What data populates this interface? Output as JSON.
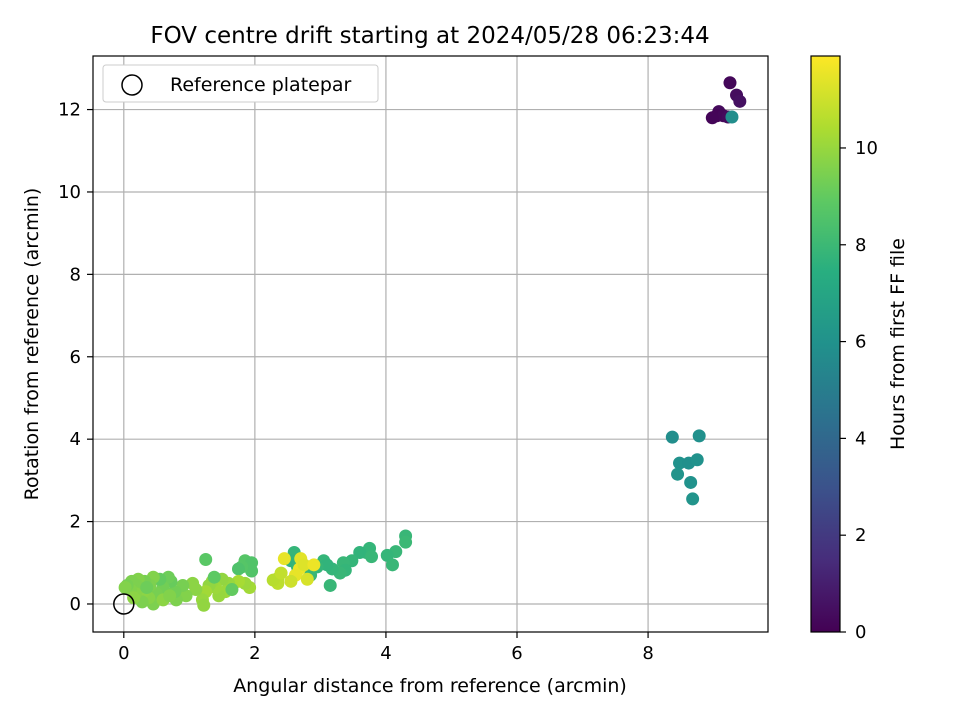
{
  "chart_data": {
    "type": "scatter",
    "title": "FOV centre drift starting at 2024/05/28 06:23:44",
    "xlabel": "Angular distance from reference (arcmin)",
    "ylabel": "Rotation from reference (arcmin)",
    "xlim": [
      -0.47,
      9.83
    ],
    "ylim": [
      -0.68,
      13.3
    ],
    "xticks": [
      0,
      2,
      4,
      6,
      8
    ],
    "yticks": [
      0,
      2,
      4,
      6,
      8,
      10,
      12
    ],
    "grid": true,
    "colormap": "viridis",
    "colorbar": {
      "label": "Hours from first FF file",
      "range": [
        0,
        11.9
      ],
      "ticks": [
        0,
        2,
        4,
        6,
        8,
        10
      ]
    },
    "legend": {
      "position": "upper-left",
      "entries": [
        "Reference platepar"
      ]
    },
    "reference_point": {
      "x": 0,
      "y": 0
    },
    "series": [
      {
        "fields": [
          "x",
          "y",
          "hours"
        ],
        "points": [
          [
            9.25,
            12.65,
            0.2
          ],
          [
            9.35,
            12.35,
            0.4
          ],
          [
            9.4,
            12.2,
            0.5
          ],
          [
            9.08,
            11.95,
            0.3
          ],
          [
            9.05,
            11.85,
            0.1
          ],
          [
            9.15,
            11.85,
            0.2
          ],
          [
            8.98,
            11.8,
            0.15
          ],
          [
            9.22,
            11.82,
            0.3
          ],
          [
            9.28,
            11.82,
            5.8
          ],
          [
            8.37,
            4.05,
            5.8
          ],
          [
            8.78,
            4.08,
            5.9
          ],
          [
            8.48,
            3.42,
            6.0
          ],
          [
            8.62,
            3.42,
            5.9
          ],
          [
            8.75,
            3.5,
            6.0
          ],
          [
            8.45,
            3.15,
            6.1
          ],
          [
            8.65,
            2.95,
            6.0
          ],
          [
            8.68,
            2.55,
            6.1
          ],
          [
            4.3,
            1.65,
            7.9
          ],
          [
            4.3,
            1.5,
            8.0
          ],
          [
            4.15,
            1.27,
            7.9
          ],
          [
            4.02,
            1.18,
            7.8
          ],
          [
            4.1,
            0.95,
            7.9
          ],
          [
            3.75,
            1.35,
            7.8
          ],
          [
            3.7,
            1.25,
            7.8
          ],
          [
            3.6,
            1.25,
            7.7
          ],
          [
            3.78,
            1.15,
            7.9
          ],
          [
            3.48,
            1.05,
            7.8
          ],
          [
            3.35,
            1.0,
            7.9
          ],
          [
            3.38,
            0.82,
            7.8
          ],
          [
            3.3,
            0.75,
            7.9
          ],
          [
            3.18,
            0.85,
            7.8
          ],
          [
            3.15,
            0.45,
            7.9
          ],
          [
            3.05,
            1.05,
            7.8
          ],
          [
            3.1,
            0.95,
            7.7
          ],
          [
            2.95,
            0.9,
            7.8
          ],
          [
            2.85,
            0.7,
            7.9
          ],
          [
            2.6,
            1.25,
            7.8
          ],
          [
            2.55,
            1.05,
            7.7
          ],
          [
            2.65,
            0.9,
            7.8
          ],
          [
            1.95,
            0.8,
            8.6
          ],
          [
            1.85,
            1.05,
            8.7
          ],
          [
            1.95,
            1.0,
            8.6
          ],
          [
            1.8,
            0.9,
            8.7
          ],
          [
            1.75,
            0.85,
            8.5
          ],
          [
            1.25,
            1.08,
            8.8
          ],
          [
            2.7,
            1.1,
            11.4
          ],
          [
            2.45,
            1.1,
            11.5
          ],
          [
            2.68,
            0.85,
            11.6
          ],
          [
            2.75,
            0.95,
            11.3
          ],
          [
            2.62,
            0.7,
            11.5
          ],
          [
            2.9,
            0.95,
            11.6
          ],
          [
            2.8,
            0.6,
            11.2
          ],
          [
            2.55,
            0.55,
            11.0
          ],
          [
            2.35,
            0.62,
            10.6
          ],
          [
            2.35,
            0.5,
            10.7
          ],
          [
            2.28,
            0.58,
            10.6
          ],
          [
            2.4,
            0.75,
            10.8
          ],
          [
            1.92,
            0.4,
            10.2
          ],
          [
            1.85,
            0.5,
            10.1
          ],
          [
            1.75,
            0.55,
            10.3
          ],
          [
            1.6,
            0.5,
            10.0
          ],
          [
            1.55,
            0.3,
            10.1
          ],
          [
            1.45,
            0.2,
            10.0
          ],
          [
            1.5,
            0.6,
            9.9
          ],
          [
            1.4,
            0.4,
            10.1
          ],
          [
            1.35,
            0.55,
            10.0
          ],
          [
            1.3,
            0.45,
            9.9
          ],
          [
            1.25,
            0.3,
            10.2
          ],
          [
            1.2,
            0.1,
            10.0
          ],
          [
            1.22,
            -0.03,
            9.9
          ],
          [
            1.1,
            0.35,
            9.8
          ],
          [
            1.05,
            0.5,
            9.8
          ],
          [
            0.95,
            0.2,
            9.6
          ],
          [
            0.9,
            0.45,
            9.4
          ],
          [
            0.8,
            0.1,
            9.5
          ],
          [
            0.78,
            0.3,
            9.3
          ],
          [
            0.72,
            0.55,
            9.1
          ],
          [
            0.68,
            0.65,
            9.2
          ],
          [
            0.6,
            0.4,
            9.3
          ],
          [
            0.55,
            0.6,
            9.0
          ],
          [
            0.5,
            0.25,
            9.4
          ],
          [
            0.45,
            0.65,
            9.6
          ],
          [
            0.45,
            0.0,
            9.5
          ],
          [
            0.4,
            0.45,
            9.5
          ],
          [
            0.38,
            0.15,
            9.7
          ],
          [
            0.32,
            0.55,
            9.4
          ],
          [
            0.3,
            0.3,
            9.8
          ],
          [
            0.28,
            0.05,
            9.5
          ],
          [
            0.22,
            0.6,
            9.6
          ],
          [
            0.2,
            0.45,
            9.5
          ],
          [
            0.18,
            0.25,
            9.7
          ],
          [
            0.12,
            0.55,
            9.5
          ],
          [
            0.1,
            0.35,
            9.6
          ],
          [
            0.05,
            0.45,
            9.4
          ],
          [
            0.02,
            0.4,
            9.6
          ],
          [
            0.6,
            0.1,
            9.8
          ],
          [
            0.7,
            0.2,
            9.6
          ],
          [
            1.65,
            0.35,
            9.0
          ],
          [
            1.38,
            0.65,
            8.9
          ],
          [
            0.35,
            0.4,
            9.2
          ],
          [
            0.15,
            0.15,
            9.8
          ]
        ]
      }
    ]
  }
}
